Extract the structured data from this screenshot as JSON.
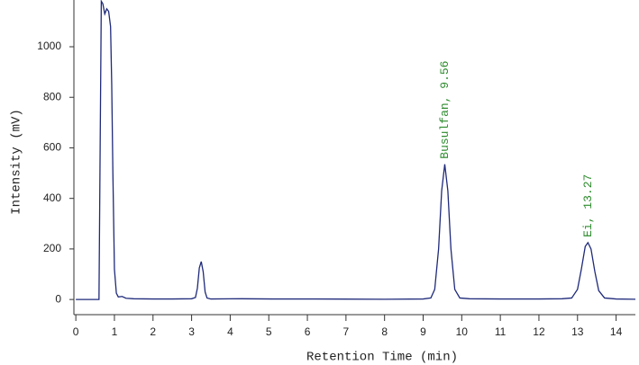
{
  "chart_data": {
    "type": "line",
    "xlabel": "Retention Time (min)",
    "ylabel": "Intensity (mV)",
    "x": [
      0,
      0.3,
      0.6,
      0.63,
      0.66,
      0.7,
      0.75,
      0.8,
      0.85,
      0.9,
      0.93,
      0.96,
      1.0,
      1.05,
      1.1,
      1.2,
      1.3,
      1.5,
      2.0,
      2.5,
      3.0,
      3.1,
      3.15,
      3.2,
      3.25,
      3.3,
      3.35,
      3.4,
      3.5,
      4.3,
      5.1,
      6.2,
      8.0,
      9.0,
      9.2,
      9.3,
      9.4,
      9.48,
      9.56,
      9.64,
      9.72,
      9.82,
      9.95,
      10.2,
      11.0,
      12.0,
      12.6,
      12.85,
      13.0,
      13.1,
      13.2,
      13.27,
      13.35,
      13.45,
      13.55,
      13.7,
      14.0,
      14.5
    ],
    "series": [
      {
        "name": "Intensity",
        "color": "#1f2a7a",
        "values": [
          0,
          0,
          0,
          600,
          1180,
          1170,
          1130,
          1150,
          1140,
          1080,
          850,
          500,
          120,
          25,
          10,
          12,
          5,
          3,
          2,
          2,
          3,
          8,
          45,
          125,
          150,
          110,
          30,
          6,
          2,
          3,
          2,
          2,
          1,
          2,
          6,
          40,
          200,
          430,
          535,
          430,
          200,
          40,
          6,
          3,
          2,
          2,
          3,
          6,
          40,
          120,
          210,
          225,
          200,
          110,
          35,
          6,
          2,
          1
        ]
      }
    ],
    "xlim": [
      -0.05,
      14.5
    ],
    "ylim": [
      -60,
      1185
    ],
    "xticks": [
      0,
      1,
      2,
      3,
      4,
      5,
      6,
      7,
      8,
      9,
      10,
      11,
      12,
      13,
      14
    ],
    "yticks": [
      0,
      200,
      400,
      600,
      800,
      1000
    ],
    "annotations": [
      {
        "text": "Busulfan, 9.56",
        "x": 9.56,
        "color": "#2e8b2e"
      },
      {
        "text": "Ei, 13.27",
        "x": 13.27,
        "color": "#2e8b2e"
      }
    ]
  }
}
